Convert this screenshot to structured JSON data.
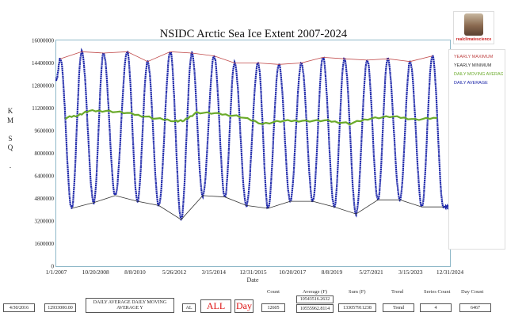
{
  "chart_data": {
    "type": "line",
    "title": "NSIDC Arctic Sea Ice Extent 2007-2024",
    "xlabel": "Date",
    "ylabel": "KM SQ .",
    "x_range": [
      "1/1/2007",
      "12/31/2024"
    ],
    "ylim": [
      0,
      16000000
    ],
    "x_ticks": [
      "1/1/2007",
      "10/20/2008",
      "8/8/2010",
      "5/26/2012",
      "3/15/2014",
      "12/31/2015",
      "10/20/2017",
      "8/8/2019",
      "5/27/2021",
      "3/15/2023",
      "12/31/2024"
    ],
    "y_ticks": [
      "0",
      "1600000",
      "3200000",
      "4800000",
      "6400000",
      "8000000",
      "9600000",
      "11200000",
      "12800000",
      "14400000",
      "16000000"
    ],
    "legend_position": "right",
    "series": [
      {
        "name": "YEARLY MAXIMUM",
        "color": "#c04848",
        "points": [
          {
            "x": "2007-03-10",
            "y": 14700000
          },
          {
            "x": "2008-03-01",
            "y": 15200000
          },
          {
            "x": "2009-03-01",
            "y": 15100000
          },
          {
            "x": "2010-03-31",
            "y": 15200000
          },
          {
            "x": "2011-03-07",
            "y": 14500000
          },
          {
            "x": "2012-03-20",
            "y": 15200000
          },
          {
            "x": "2013-03-15",
            "y": 15100000
          },
          {
            "x": "2014-03-21",
            "y": 14900000
          },
          {
            "x": "2015-02-25",
            "y": 14400000
          },
          {
            "x": "2016-03-24",
            "y": 14400000
          },
          {
            "x": "2017-03-07",
            "y": 14300000
          },
          {
            "x": "2018-03-17",
            "y": 14400000
          },
          {
            "x": "2019-03-13",
            "y": 14800000
          },
          {
            "x": "2020-03-05",
            "y": 14700000
          },
          {
            "x": "2021-03-21",
            "y": 14600000
          },
          {
            "x": "2022-02-25",
            "y": 14700000
          },
          {
            "x": "2023-03-06",
            "y": 14500000
          },
          {
            "x": "2024-03-14",
            "y": 14900000
          }
        ]
      },
      {
        "name": "YEARLY MINIMUM",
        "color": "#333333",
        "points": [
          {
            "x": "2007-09-16",
            "y": 4100000
          },
          {
            "x": "2008-09-18",
            "y": 4500000
          },
          {
            "x": "2009-09-12",
            "y": 5000000
          },
          {
            "x": "2010-09-19",
            "y": 4600000
          },
          {
            "x": "2011-09-09",
            "y": 4300000
          },
          {
            "x": "2012-09-17",
            "y": 3300000
          },
          {
            "x": "2013-09-13",
            "y": 5000000
          },
          {
            "x": "2014-09-17",
            "y": 4900000
          },
          {
            "x": "2015-09-11",
            "y": 4300000
          },
          {
            "x": "2016-09-07",
            "y": 4100000
          },
          {
            "x": "2017-09-13",
            "y": 4600000
          },
          {
            "x": "2018-09-23",
            "y": 4600000
          },
          {
            "x": "2019-09-18",
            "y": 4200000
          },
          {
            "x": "2020-09-15",
            "y": 3700000
          },
          {
            "x": "2021-09-16",
            "y": 4700000
          },
          {
            "x": "2022-09-18",
            "y": 4700000
          },
          {
            "x": "2023-09-19",
            "y": 4200000
          },
          {
            "x": "2024-09-11",
            "y": 4200000
          }
        ]
      },
      {
        "name": "DAILY MOVING AVERAGE",
        "color": "#6aaa2a",
        "points": [
          {
            "x": "2007-06-01",
            "y": 10500000
          },
          {
            "x": "2008-01-01",
            "y": 10700000
          },
          {
            "x": "2008-07-01",
            "y": 11000000
          },
          {
            "x": "2009-06-01",
            "y": 11000000
          },
          {
            "x": "2010-06-01",
            "y": 10800000
          },
          {
            "x": "2011-06-01",
            "y": 10500000
          },
          {
            "x": "2012-06-01",
            "y": 10300000
          },
          {
            "x": "2012-11-01",
            "y": 10300000
          },
          {
            "x": "2013-06-01",
            "y": 10900000
          },
          {
            "x": "2014-06-01",
            "y": 10800000
          },
          {
            "x": "2015-06-01",
            "y": 10600000
          },
          {
            "x": "2016-06-01",
            "y": 10100000
          },
          {
            "x": "2017-06-01",
            "y": 10300000
          },
          {
            "x": "2018-06-01",
            "y": 10300000
          },
          {
            "x": "2019-06-01",
            "y": 10300000
          },
          {
            "x": "2020-06-01",
            "y": 10100000
          },
          {
            "x": "2021-06-01",
            "y": 10500000
          },
          {
            "x": "2022-06-01",
            "y": 10600000
          },
          {
            "x": "2023-06-01",
            "y": 10400000
          },
          {
            "x": "2024-06-01",
            "y": 10500000
          }
        ]
      },
      {
        "name": "DAILY AVERAGE",
        "color": "#1a24a8",
        "description": "daily extent oscillating seasonally between the yearly maximum and yearly minimum"
      }
    ]
  },
  "logo": {
    "text": "realclimatescience"
  },
  "footer": {
    "headers": {
      "count": "Count",
      "average": "Average (F)",
      "sum": "Sum (F)",
      "trend": "Trend",
      "series_count": "Series Count",
      "day_count": "Day Count"
    },
    "date": "4/30/2016",
    "value": "12933000.00",
    "series_label": "DAILY AVERAGE DAILY MOVING AVERAGE Y",
    "al": "AL",
    "all": "ALL",
    "day": "Day",
    "count": "12605",
    "average_top": "10543516.2632",
    "average": "10555962.8114",
    "sum": "133057911238",
    "trend": "Trend",
    "series_count": "4",
    "day_count": "6467"
  }
}
